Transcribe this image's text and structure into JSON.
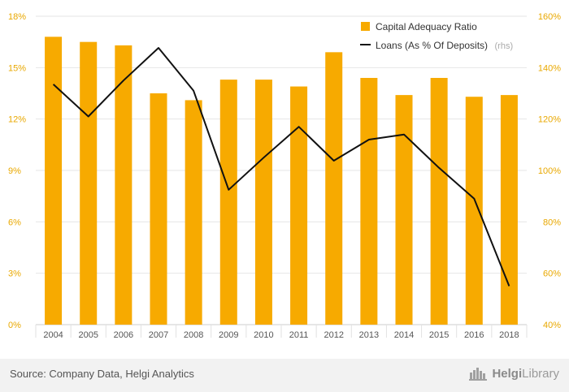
{
  "chart_data": {
    "type": "bar",
    "categories": [
      "2004",
      "2005",
      "2006",
      "2007",
      "2008",
      "2009",
      "2010",
      "2011",
      "2012",
      "2013",
      "2014",
      "2015",
      "2016",
      "2018"
    ],
    "series": [
      {
        "name": "Capital Adequacy Ratio",
        "type": "bar",
        "axis": "left",
        "values": [
          16.8,
          16.5,
          16.3,
          13.5,
          13.1,
          14.3,
          14.3,
          13.9,
          15.9,
          14.4,
          13.4,
          14.4,
          13.3,
          13.4
        ],
        "color": "#f7aa00"
      },
      {
        "name": "Loans (As % Of Deposits)",
        "legend_suffix": "(rhs)",
        "type": "line",
        "axis": "right",
        "values": [
          133.5,
          121.0,
          135.0,
          147.7,
          131.0,
          92.5,
          105.0,
          117.0,
          103.8,
          112.0,
          114.0,
          101.0,
          89.0,
          55.0
        ],
        "color": "#111111"
      }
    ],
    "y_left": {
      "ticks": [
        "0%",
        "3%",
        "6%",
        "9%",
        "12%",
        "15%",
        "18%"
      ],
      "ylim": [
        0,
        18
      ]
    },
    "y_right": {
      "ticks": [
        "40%",
        "60%",
        "80%",
        "100%",
        "120%",
        "140%",
        "160%"
      ],
      "ylim": [
        40,
        160
      ]
    },
    "grid": true,
    "legend_position": "top-right"
  },
  "footer": {
    "source": "Source: Company Data, Helgi Analytics",
    "brand_prefix": "Helgi",
    "brand_suffix": "Library"
  }
}
